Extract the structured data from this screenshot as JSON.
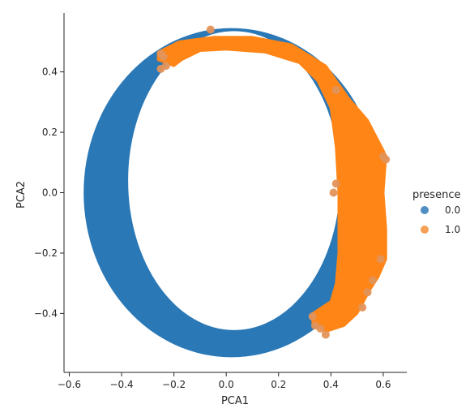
{
  "chart_data": {
    "type": "scatter",
    "xlabel": "PCA1",
    "ylabel": "PCA2",
    "xlim": [
      -0.62,
      0.69
    ],
    "ylim": [
      -0.595,
      0.595
    ],
    "xticks": [
      "−0.6",
      "−0.4",
      "−0.2",
      "0.0",
      "0.2",
      "0.4",
      "0.6"
    ],
    "xtick_values": [
      -0.6,
      -0.4,
      -0.2,
      0.0,
      0.2,
      0.4,
      0.6
    ],
    "yticks": [
      "−0.4",
      "−0.2",
      "0.0",
      "0.2",
      "0.4"
    ],
    "ytick_values": [
      -0.4,
      -0.2,
      0.0,
      0.2,
      0.4
    ],
    "grid": false,
    "legend": {
      "title": "presence",
      "placement": "right, outside plot",
      "entries": [
        {
          "label": "0.0",
          "color": "#4f8fc3"
        },
        {
          "label": "1.0",
          "color": "#f5a057"
        }
      ]
    },
    "series": [
      {
        "name": "0.0",
        "color": "#2a78b6",
        "description_shape": "thick annulus",
        "outer_ellipse": {
          "cx": 0.02,
          "cy": 0.0,
          "rx": 0.565,
          "ry": 0.545
        },
        "inner_ellipse": {
          "cx": 0.03,
          "cy": 0.04,
          "rx": 0.405,
          "ry": 0.495
        }
      },
      {
        "name": "1.0",
        "color": "#ff8516",
        "outline": [
          [
            -0.26,
            0.465
          ],
          [
            -0.18,
            0.5
          ],
          [
            -0.05,
            0.515
          ],
          [
            0.1,
            0.515
          ],
          [
            0.25,
            0.49
          ],
          [
            0.38,
            0.42
          ],
          [
            0.47,
            0.31
          ],
          [
            0.54,
            0.24
          ],
          [
            0.6,
            0.14
          ],
          [
            0.61,
            0.12
          ],
          [
            0.6,
            0.0
          ],
          [
            0.61,
            -0.12
          ],
          [
            0.61,
            -0.22
          ],
          [
            0.58,
            -0.28
          ],
          [
            0.55,
            -0.32
          ],
          [
            0.5,
            -0.4
          ],
          [
            0.45,
            -0.44
          ],
          [
            0.38,
            -0.46
          ],
          [
            0.33,
            -0.43
          ],
          [
            0.33,
            -0.4
          ],
          [
            0.4,
            -0.36
          ],
          [
            0.42,
            -0.3
          ],
          [
            0.43,
            -0.2
          ],
          [
            0.43,
            0.0
          ],
          [
            0.42,
            0.15
          ],
          [
            0.4,
            0.28
          ],
          [
            0.35,
            0.37
          ],
          [
            0.28,
            0.43
          ],
          [
            0.15,
            0.465
          ],
          [
            0.0,
            0.475
          ],
          [
            -0.1,
            0.47
          ],
          [
            -0.17,
            0.44
          ],
          [
            -0.2,
            0.42
          ],
          [
            -0.26,
            0.44
          ]
        ],
        "points": [
          [
            -0.25,
            0.46
          ],
          [
            -0.24,
            0.45
          ],
          [
            -0.23,
            0.42
          ],
          [
            -0.25,
            0.41
          ],
          [
            -0.06,
            0.54
          ],
          [
            0.42,
            0.34
          ],
          [
            0.41,
            0.0
          ],
          [
            0.42,
            0.03
          ],
          [
            0.6,
            0.12
          ],
          [
            0.61,
            0.11
          ],
          [
            0.54,
            -0.33
          ],
          [
            0.52,
            -0.38
          ],
          [
            0.33,
            -0.41
          ],
          [
            0.34,
            -0.44
          ],
          [
            0.36,
            -0.45
          ],
          [
            0.38,
            -0.47
          ],
          [
            0.56,
            -0.29
          ],
          [
            0.59,
            -0.22
          ]
        ]
      }
    ]
  }
}
